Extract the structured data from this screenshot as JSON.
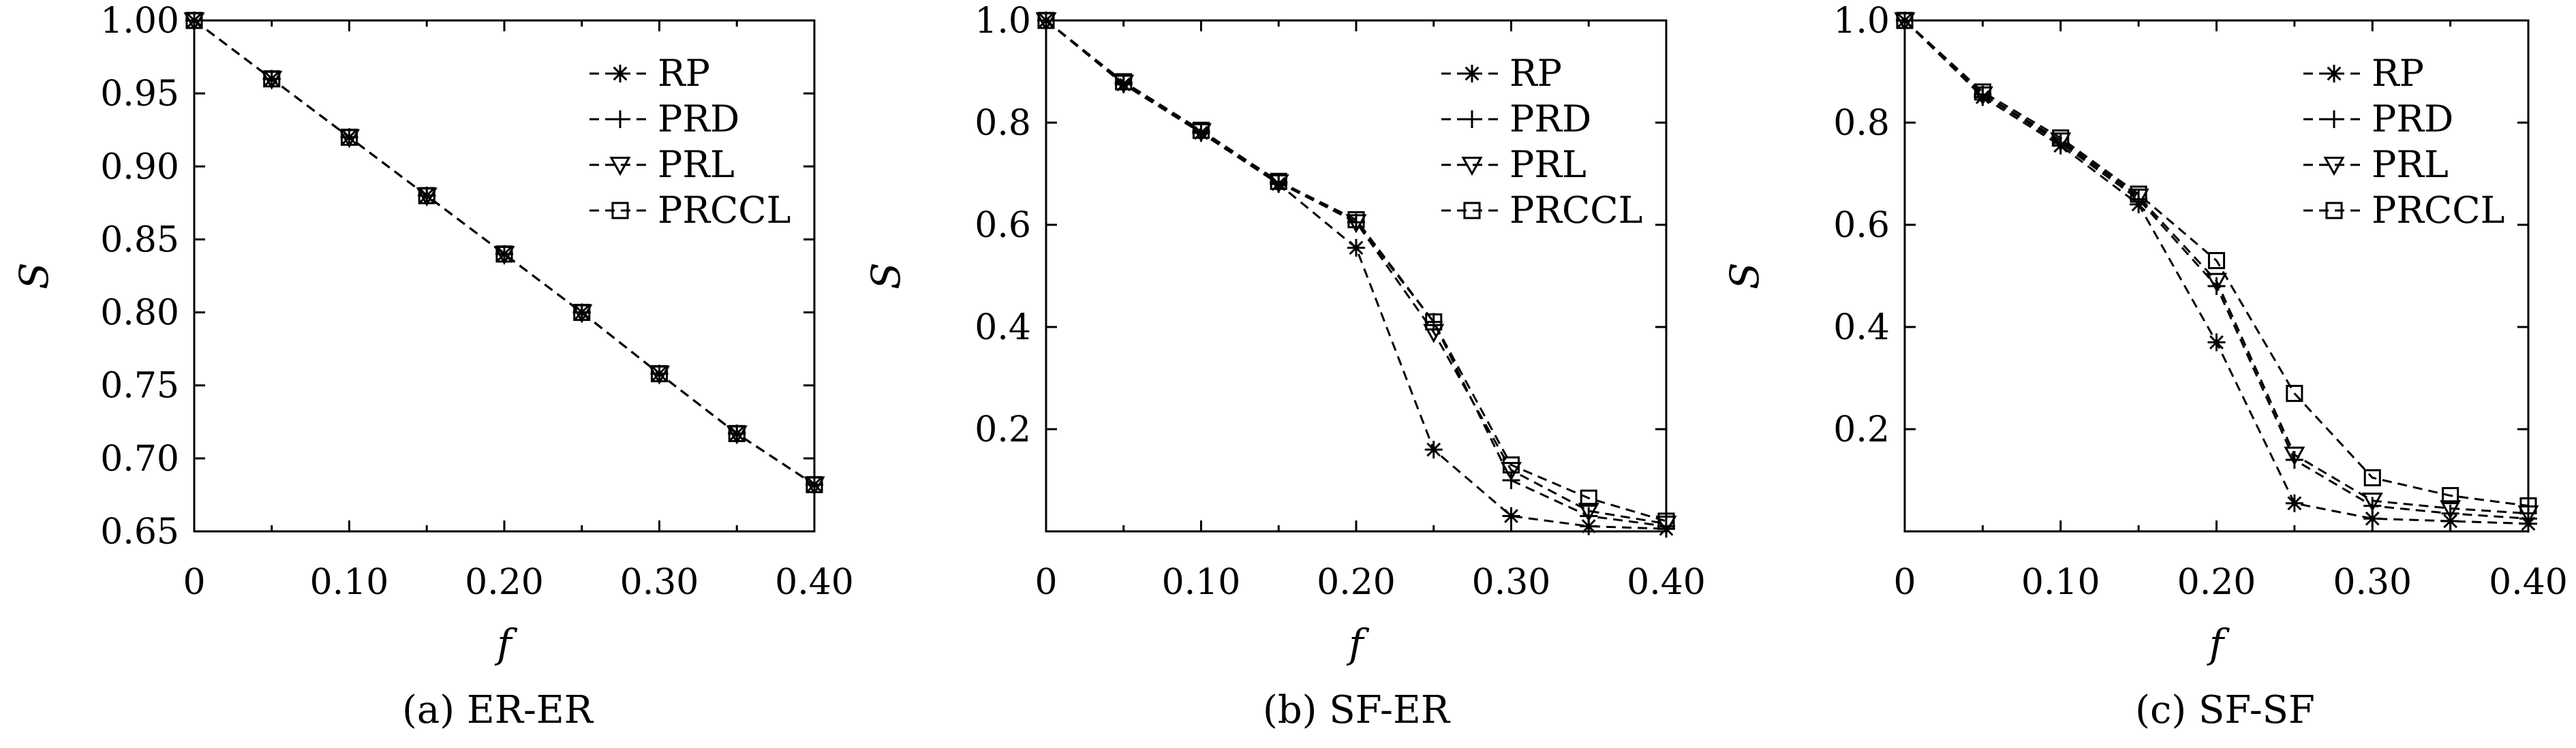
{
  "chart_data": [
    {
      "type": "line",
      "caption": "(a) ER-ER",
      "xlabel": "f",
      "ylabel": "S",
      "xlim": [
        0,
        0.4
      ],
      "ylim": [
        0.65,
        1.0
      ],
      "x_ticks": [
        0,
        0.1,
        0.2,
        0.3,
        0.4
      ],
      "x_tick_labels": [
        "0",
        "0.10",
        "0.20",
        "0.30",
        "0.40"
      ],
      "y_ticks": [
        0.65,
        0.7,
        0.75,
        0.8,
        0.85,
        0.9,
        0.95,
        1.0
      ],
      "y_tick_labels": [
        "0.65",
        "0.70",
        "0.75",
        "0.80",
        "0.85",
        "0.90",
        "0.95",
        "1.00"
      ],
      "grid": false,
      "legend_position": "top-right",
      "x": [
        0,
        0.05,
        0.1,
        0.15,
        0.2,
        0.25,
        0.3,
        0.35,
        0.4
      ],
      "series": [
        {
          "name": "RP",
          "marker": "asterisk",
          "values": [
            1.0,
            0.96,
            0.92,
            0.88,
            0.84,
            0.8,
            0.758,
            0.717,
            0.682
          ]
        },
        {
          "name": "PRD",
          "marker": "plus",
          "values": [
            1.0,
            0.96,
            0.92,
            0.88,
            0.84,
            0.8,
            0.758,
            0.717,
            0.682
          ]
        },
        {
          "name": "PRL",
          "marker": "triangle-down",
          "values": [
            1.0,
            0.96,
            0.92,
            0.88,
            0.84,
            0.8,
            0.758,
            0.717,
            0.682
          ]
        },
        {
          "name": "PRCCL",
          "marker": "square",
          "values": [
            1.0,
            0.96,
            0.92,
            0.88,
            0.84,
            0.8,
            0.758,
            0.717,
            0.682
          ]
        }
      ]
    },
    {
      "type": "line",
      "caption": "(b) SF-ER",
      "xlabel": "f",
      "ylabel": "S",
      "xlim": [
        0,
        0.4
      ],
      "ylim": [
        0,
        1.0
      ],
      "x_ticks": [
        0,
        0.1,
        0.2,
        0.3,
        0.4
      ],
      "x_tick_labels": [
        "0",
        "0.10",
        "0.20",
        "0.30",
        "0.40"
      ],
      "y_ticks": [
        0.2,
        0.4,
        0.6,
        0.8,
        1.0
      ],
      "y_tick_labels": [
        "0.2",
        "0.4",
        "0.6",
        "0.8",
        "1.0"
      ],
      "grid": false,
      "legend_position": "top-right",
      "x": [
        0,
        0.05,
        0.1,
        0.15,
        0.2,
        0.25,
        0.3,
        0.35,
        0.4
      ],
      "series": [
        {
          "name": "RP",
          "marker": "asterisk",
          "values": [
            1.0,
            0.875,
            0.78,
            0.68,
            0.555,
            0.16,
            0.03,
            0.01,
            0.005
          ]
        },
        {
          "name": "PRD",
          "marker": "plus",
          "values": [
            1.0,
            0.878,
            0.783,
            0.683,
            0.605,
            0.41,
            0.1,
            0.03,
            0.01
          ]
        },
        {
          "name": "PRL",
          "marker": "triangle-down",
          "values": [
            1.0,
            0.878,
            0.783,
            0.683,
            0.605,
            0.39,
            0.12,
            0.04,
            0.015
          ]
        },
        {
          "name": "PRCCL",
          "marker": "square",
          "values": [
            1.0,
            0.88,
            0.785,
            0.685,
            0.61,
            0.41,
            0.13,
            0.065,
            0.02
          ]
        }
      ]
    },
    {
      "type": "line",
      "caption": "(c) SF-SF",
      "xlabel": "f",
      "ylabel": "S",
      "xlim": [
        0,
        0.4
      ],
      "ylim": [
        0,
        1.0
      ],
      "x_ticks": [
        0,
        0.1,
        0.2,
        0.3,
        0.4
      ],
      "x_tick_labels": [
        "0",
        "0.10",
        "0.20",
        "0.30",
        "0.40"
      ],
      "y_ticks": [
        0.2,
        0.4,
        0.6,
        0.8,
        1.0
      ],
      "y_tick_labels": [
        "0.2",
        "0.4",
        "0.6",
        "0.8",
        "1.0"
      ],
      "grid": false,
      "legend_position": "top-right",
      "x": [
        0,
        0.05,
        0.1,
        0.15,
        0.2,
        0.25,
        0.3,
        0.35,
        0.4
      ],
      "series": [
        {
          "name": "RP",
          "marker": "asterisk",
          "values": [
            1.0,
            0.85,
            0.755,
            0.64,
            0.37,
            0.055,
            0.025,
            0.02,
            0.015
          ]
        },
        {
          "name": "PRD",
          "marker": "plus",
          "values": [
            1.0,
            0.855,
            0.76,
            0.65,
            0.48,
            0.14,
            0.05,
            0.035,
            0.025
          ]
        },
        {
          "name": "PRL",
          "marker": "triangle-down",
          "values": [
            1.0,
            0.855,
            0.765,
            0.655,
            0.49,
            0.15,
            0.06,
            0.045,
            0.035
          ]
        },
        {
          "name": "PRCCL",
          "marker": "square",
          "values": [
            1.0,
            0.86,
            0.77,
            0.66,
            0.53,
            0.27,
            0.105,
            0.07,
            0.05
          ]
        }
      ]
    }
  ]
}
